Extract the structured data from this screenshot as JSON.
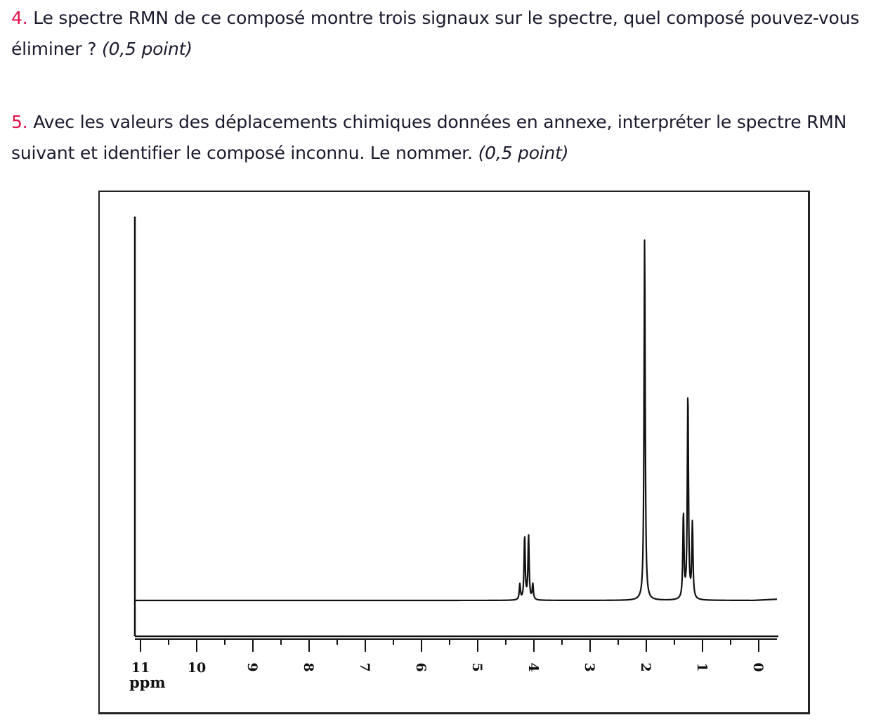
{
  "questions": [
    {
      "number": "4.",
      "text": " Le spectre RMN de ce composé montre trois signaux sur le spectre, quel composé pouvez-vous éliminer ? ",
      "points": "(0,5 point)"
    },
    {
      "number": "5.",
      "text": " Avec les valeurs des déplacements chimiques données en annexe, interpréter le spectre RMN suivant et identifier le composé inconnu. Le nommer. ",
      "points": "(0,5 point)"
    }
  ],
  "chart_data": {
    "type": "line",
    "title": "",
    "xlabel": "ppm",
    "ylabel": "",
    "xlim": [
      11,
      0
    ],
    "x_reversed": true,
    "x_ticks": [
      11,
      10,
      9,
      8,
      7,
      6,
      5,
      4,
      3,
      2,
      1,
      0
    ],
    "x_tick_labels": [
      "11",
      "10",
      "9",
      "8",
      "7",
      "6",
      "5",
      "4",
      "3",
      "2",
      "1",
      "0"
    ],
    "minor_tick_step": 0.5,
    "y_relative_intensity": true,
    "ylim": [
      0,
      1
    ],
    "grid": false,
    "peaks": [
      {
        "signal": "quartet",
        "center_ppm": 4.12,
        "lines": [
          {
            "ppm": 4.25,
            "height": 0.04
          },
          {
            "ppm": 4.165,
            "height": 0.165
          },
          {
            "ppm": 4.095,
            "height": 0.165
          },
          {
            "ppm": 4.02,
            "height": 0.04
          }
        ]
      },
      {
        "signal": "singlet",
        "center_ppm": 2.03,
        "lines": [
          {
            "ppm": 2.03,
            "height": 0.94
          }
        ]
      },
      {
        "signal": "triplet",
        "center_ppm": 1.26,
        "lines": [
          {
            "ppm": 1.34,
            "height": 0.22
          },
          {
            "ppm": 1.26,
            "height": 0.535
          },
          {
            "ppm": 1.18,
            "height": 0.195
          }
        ]
      }
    ],
    "series": []
  }
}
